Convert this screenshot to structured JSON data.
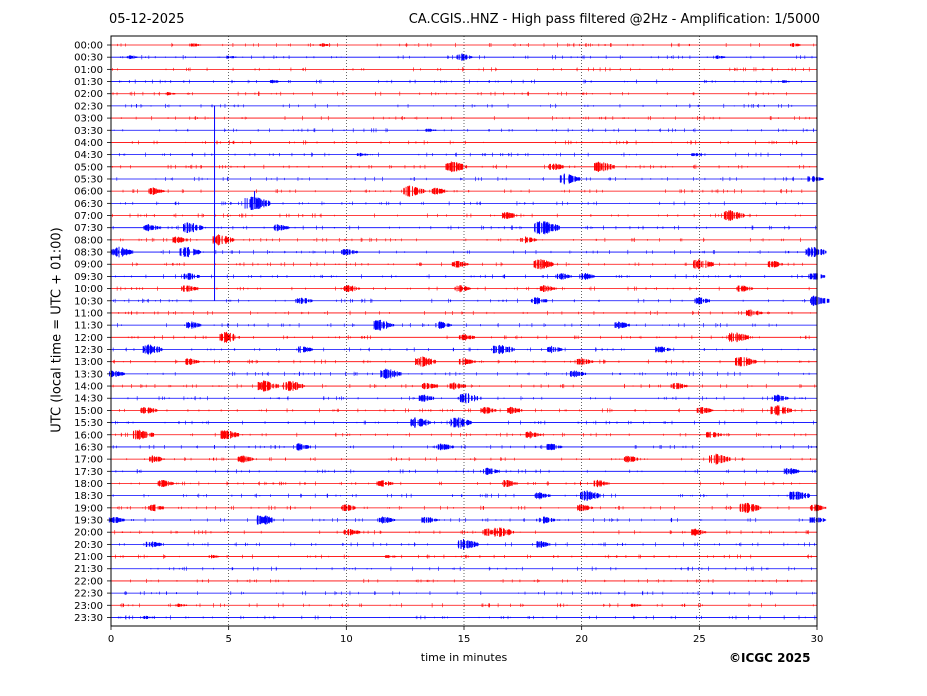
{
  "header": {
    "date": "05-12-2025",
    "title": "CA.CGIS..HNZ - High pass filtered @2Hz - Amplification: 1/5000"
  },
  "footer": {
    "copyright": "©ICGC 2025"
  },
  "colors": {
    "odd_trace": "#ff0000",
    "even_trace": "#0000ff",
    "grid": "#000000"
  },
  "chart_data": {
    "type": "line",
    "subtype": "helicorder",
    "title": "CA.CGIS..HNZ - High pass filtered @2Hz - Amplification: 1/5000",
    "xlabel": "time in minutes",
    "ylabel": "UTC (local time = UTC + 01:00)",
    "xlim": [
      0,
      30
    ],
    "x_ticks": [
      "0",
      "5",
      "10",
      "15",
      "20",
      "25",
      "30"
    ],
    "x_tick_values": [
      0,
      5,
      10,
      15,
      20,
      25,
      30
    ],
    "vertical_grid_minutes": [
      5,
      10,
      15,
      20,
      25
    ],
    "grid": "dotted vertical",
    "rows": [
      {
        "label": "00:00",
        "color": "red",
        "events": [
          {
            "t": 3.5,
            "a": 1
          },
          {
            "t": 9.0,
            "a": 1
          },
          {
            "t": 29.0,
            "a": 1
          }
        ]
      },
      {
        "label": "00:30",
        "color": "blue",
        "events": [
          {
            "t": 0.8,
            "a": 1
          },
          {
            "t": 5.0,
            "a": 1
          },
          {
            "t": 14.9,
            "a": 2
          },
          {
            "t": 25.8,
            "a": 1
          }
        ]
      },
      {
        "label": "01:00",
        "color": "red",
        "events": []
      },
      {
        "label": "01:30",
        "color": "blue",
        "events": [
          {
            "t": 6.9,
            "a": 1
          },
          {
            "t": 28.5,
            "a": 1
          }
        ]
      },
      {
        "label": "02:00",
        "color": "red",
        "events": [
          {
            "t": 2.4,
            "a": 1
          }
        ]
      },
      {
        "label": "02:30",
        "color": "blue",
        "events": []
      },
      {
        "label": "03:00",
        "color": "red",
        "events": []
      },
      {
        "label": "03:30",
        "color": "blue",
        "events": [
          {
            "t": 13.5,
            "a": 1
          }
        ]
      },
      {
        "label": "04:00",
        "color": "red",
        "events": []
      },
      {
        "label": "04:30",
        "color": "blue",
        "events": [
          {
            "t": 10.6,
            "a": 1
          },
          {
            "t": 24.8,
            "a": 1
          }
        ]
      },
      {
        "label": "05:00",
        "color": "red",
        "events": [
          {
            "t": 14.5,
            "a": 3
          },
          {
            "t": 18.8,
            "a": 2
          },
          {
            "t": 20.8,
            "a": 3
          }
        ]
      },
      {
        "label": "05:30",
        "color": "blue",
        "events": [
          {
            "t": 19.3,
            "a": 3
          },
          {
            "t": 29.8,
            "a": 2
          }
        ]
      },
      {
        "label": "06:00",
        "color": "red",
        "events": [
          {
            "t": 1.8,
            "a": 2
          },
          {
            "t": 12.7,
            "a": 3
          },
          {
            "t": 13.8,
            "a": 2
          }
        ]
      },
      {
        "label": "06:30",
        "color": "blue",
        "events": [
          {
            "t": 6.0,
            "a": 4
          }
        ]
      },
      {
        "label": "07:00",
        "color": "red",
        "events": [
          {
            "t": 16.8,
            "a": 2
          },
          {
            "t": 26.3,
            "a": 3
          }
        ]
      },
      {
        "label": "07:30",
        "color": "blue",
        "events": [
          {
            "t": 1.6,
            "a": 2
          },
          {
            "t": 3.3,
            "a": 3
          },
          {
            "t": 7.1,
            "a": 2
          },
          {
            "t": 18.3,
            "a": 4
          }
        ]
      },
      {
        "label": "08:00",
        "color": "red",
        "events": [
          {
            "t": 2.8,
            "a": 2
          },
          {
            "t": 4.6,
            "a": 3
          },
          {
            "t": 17.6,
            "a": 2
          }
        ]
      },
      {
        "label": "08:30",
        "color": "blue",
        "events": [
          {
            "t": 0.3,
            "a": 3
          },
          {
            "t": 3.2,
            "a": 3
          },
          {
            "t": 10.0,
            "a": 2
          },
          {
            "t": 29.8,
            "a": 3
          }
        ]
      },
      {
        "label": "09:00",
        "color": "red",
        "events": [
          {
            "t": 14.7,
            "a": 2
          },
          {
            "t": 18.2,
            "a": 3
          },
          {
            "t": 25.0,
            "a": 3
          },
          {
            "t": 28.1,
            "a": 2
          }
        ]
      },
      {
        "label": "09:30",
        "color": "blue",
        "events": [
          {
            "t": 3.3,
            "a": 2
          },
          {
            "t": 19.1,
            "a": 2
          },
          {
            "t": 20.1,
            "a": 2
          },
          {
            "t": 29.9,
            "a": 2
          }
        ]
      },
      {
        "label": "10:00",
        "color": "red",
        "events": [
          {
            "t": 3.2,
            "a": 2
          },
          {
            "t": 10.1,
            "a": 2
          },
          {
            "t": 14.8,
            "a": 2
          },
          {
            "t": 18.4,
            "a": 2
          },
          {
            "t": 26.8,
            "a": 2
          }
        ]
      },
      {
        "label": "10:30",
        "color": "blue",
        "events": [
          {
            "t": 8.1,
            "a": 2
          },
          {
            "t": 18.1,
            "a": 2
          },
          {
            "t": 25.0,
            "a": 2
          },
          {
            "t": 29.9,
            "a": 3
          }
        ]
      },
      {
        "label": "11:00",
        "color": "red",
        "events": [
          {
            "t": 27.2,
            "a": 2
          }
        ]
      },
      {
        "label": "11:30",
        "color": "blue",
        "events": [
          {
            "t": 3.4,
            "a": 2
          },
          {
            "t": 11.4,
            "a": 3
          },
          {
            "t": 14.0,
            "a": 2
          },
          {
            "t": 21.6,
            "a": 2
          }
        ]
      },
      {
        "label": "12:00",
        "color": "red",
        "events": [
          {
            "t": 4.9,
            "a": 3
          },
          {
            "t": 15.0,
            "a": 2
          },
          {
            "t": 26.5,
            "a": 3
          }
        ]
      },
      {
        "label": "12:30",
        "color": "blue",
        "events": [
          {
            "t": 1.6,
            "a": 3
          },
          {
            "t": 8.1,
            "a": 2
          },
          {
            "t": 16.5,
            "a": 3
          },
          {
            "t": 18.7,
            "a": 2
          },
          {
            "t": 23.3,
            "a": 2
          }
        ]
      },
      {
        "label": "13:00",
        "color": "red",
        "events": [
          {
            "t": 3.3,
            "a": 2
          },
          {
            "t": 13.2,
            "a": 3
          },
          {
            "t": 15.0,
            "a": 2
          },
          {
            "t": 20.0,
            "a": 2
          },
          {
            "t": 26.8,
            "a": 3
          }
        ]
      },
      {
        "label": "13:30",
        "color": "blue",
        "events": [
          {
            "t": 0.1,
            "a": 2
          },
          {
            "t": 11.7,
            "a": 3
          },
          {
            "t": 19.7,
            "a": 2
          }
        ]
      },
      {
        "label": "14:00",
        "color": "red",
        "events": [
          {
            "t": 6.5,
            "a": 3
          },
          {
            "t": 7.6,
            "a": 3
          },
          {
            "t": 13.4,
            "a": 2
          },
          {
            "t": 14.6,
            "a": 2
          },
          {
            "t": 24.0,
            "a": 2
          }
        ]
      },
      {
        "label": "14:30",
        "color": "blue",
        "events": [
          {
            "t": 13.3,
            "a": 2
          },
          {
            "t": 15.1,
            "a": 3
          },
          {
            "t": 28.3,
            "a": 2
          }
        ]
      },
      {
        "label": "15:00",
        "color": "red",
        "events": [
          {
            "t": 1.5,
            "a": 2
          },
          {
            "t": 15.9,
            "a": 2
          },
          {
            "t": 17.0,
            "a": 2
          },
          {
            "t": 25.1,
            "a": 2
          },
          {
            "t": 28.3,
            "a": 3
          }
        ]
      },
      {
        "label": "15:30",
        "color": "blue",
        "events": [
          {
            "t": 13.0,
            "a": 3
          },
          {
            "t": 14.7,
            "a": 3
          }
        ]
      },
      {
        "label": "16:00",
        "color": "red",
        "events": [
          {
            "t": 1.2,
            "a": 3
          },
          {
            "t": 4.8,
            "a": 3
          },
          {
            "t": 17.8,
            "a": 2
          },
          {
            "t": 25.5,
            "a": 2
          }
        ]
      },
      {
        "label": "16:30",
        "color": "blue",
        "events": [
          {
            "t": 8.0,
            "a": 2
          },
          {
            "t": 14.1,
            "a": 2
          },
          {
            "t": 18.7,
            "a": 2
          }
        ]
      },
      {
        "label": "17:00",
        "color": "red",
        "events": [
          {
            "t": 1.8,
            "a": 2
          },
          {
            "t": 5.6,
            "a": 2
          },
          {
            "t": 22.0,
            "a": 2
          },
          {
            "t": 25.7,
            "a": 3
          }
        ]
      },
      {
        "label": "17:30",
        "color": "blue",
        "events": [
          {
            "t": 16.0,
            "a": 2
          },
          {
            "t": 28.8,
            "a": 2
          }
        ]
      },
      {
        "label": "18:00",
        "color": "red",
        "events": [
          {
            "t": 2.2,
            "a": 2
          },
          {
            "t": 11.5,
            "a": 2
          },
          {
            "t": 16.8,
            "a": 2
          },
          {
            "t": 20.7,
            "a": 2
          }
        ]
      },
      {
        "label": "18:30",
        "color": "blue",
        "events": [
          {
            "t": 18.2,
            "a": 2
          },
          {
            "t": 20.2,
            "a": 3
          },
          {
            "t": 29.1,
            "a": 3
          }
        ]
      },
      {
        "label": "19:00",
        "color": "red",
        "events": [
          {
            "t": 1.8,
            "a": 2
          },
          {
            "t": 10.0,
            "a": 2
          },
          {
            "t": 20.0,
            "a": 2
          },
          {
            "t": 27.0,
            "a": 3
          },
          {
            "t": 29.9,
            "a": 2
          }
        ]
      },
      {
        "label": "19:30",
        "color": "blue",
        "events": [
          {
            "t": 0.1,
            "a": 2
          },
          {
            "t": 6.4,
            "a": 3
          },
          {
            "t": 11.6,
            "a": 2
          },
          {
            "t": 13.4,
            "a": 2
          },
          {
            "t": 18.4,
            "a": 2
          },
          {
            "t": 29.9,
            "a": 2
          }
        ]
      },
      {
        "label": "20:00",
        "color": "red",
        "events": [
          {
            "t": 10.1,
            "a": 2
          },
          {
            "t": 16.0,
            "a": 2
          },
          {
            "t": 16.5,
            "a": 3
          },
          {
            "t": 24.8,
            "a": 2
          }
        ]
      },
      {
        "label": "20:30",
        "color": "blue",
        "events": [
          {
            "t": 1.7,
            "a": 2
          },
          {
            "t": 15.0,
            "a": 3
          },
          {
            "t": 18.2,
            "a": 2
          }
        ]
      },
      {
        "label": "21:00",
        "color": "red",
        "events": [
          {
            "t": 4.3,
            "a": 1
          },
          {
            "t": 11.8,
            "a": 1
          }
        ]
      },
      {
        "label": "21:30",
        "color": "blue",
        "events": []
      },
      {
        "label": "22:00",
        "color": "red",
        "events": []
      },
      {
        "label": "22:30",
        "color": "blue",
        "events": []
      },
      {
        "label": "23:00",
        "color": "red",
        "events": [
          {
            "t": 2.9,
            "a": 1
          },
          {
            "t": 22.2,
            "a": 1
          }
        ]
      },
      {
        "label": "23:30",
        "color": "blue",
        "events": [
          {
            "t": 1.5,
            "a": 1
          }
        ]
      }
    ],
    "spikes": [
      {
        "row": "02:30",
        "t": 4.4,
        "span_to": "10:30",
        "color": "blue"
      },
      {
        "row": "06:00",
        "t": 6.1,
        "span_to": "06:30",
        "color": "blue"
      }
    ]
  }
}
